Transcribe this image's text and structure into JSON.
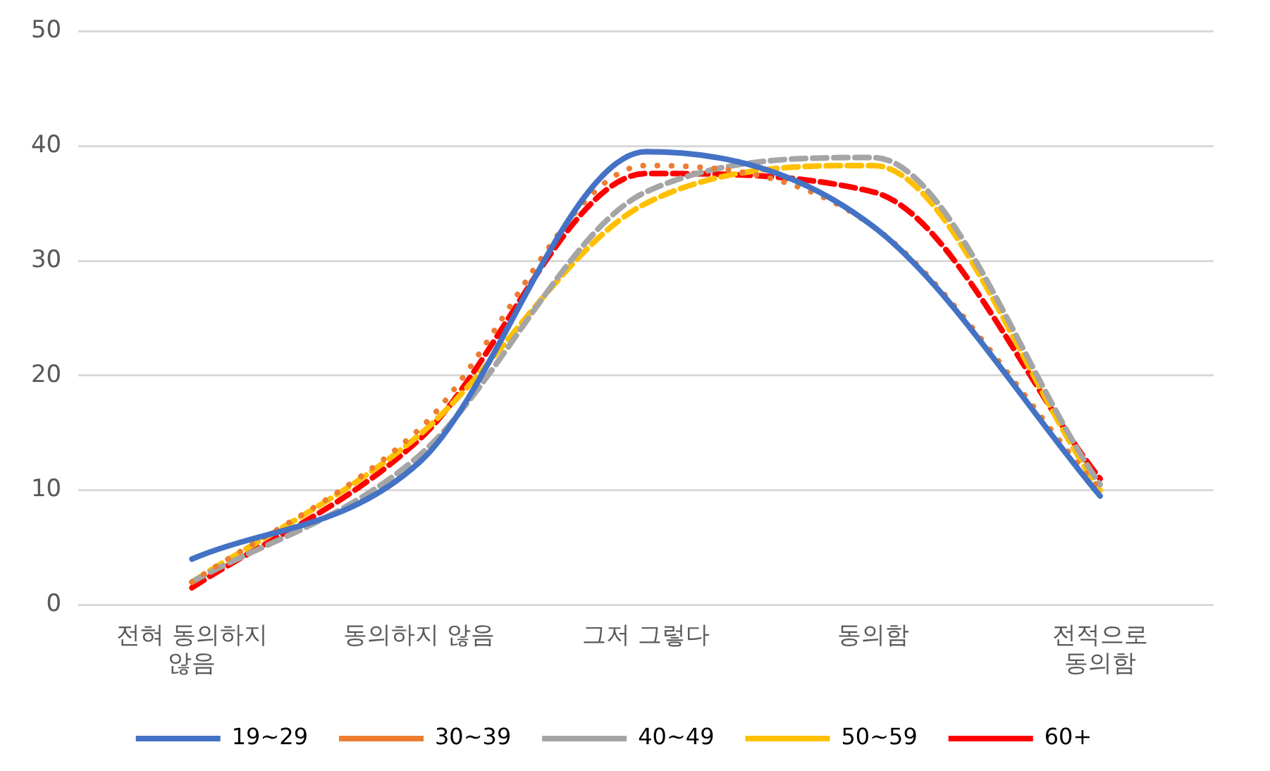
{
  "chart_data": {
    "type": "line",
    "categories": [
      "전혀 동의하지 않음",
      "동의하지 않음",
      "그저 그렇다",
      "동의함",
      "전적으로 동의함"
    ],
    "series": [
      {
        "name": "19~29",
        "color": "#4472c4",
        "line_style": "solid",
        "values": [
          4,
          12.4,
          39.5,
          33,
          9.5
        ]
      },
      {
        "name": "30~39",
        "color": "#ed7d31",
        "line_style": "dotted",
        "values": [
          2,
          15.3,
          38.3,
          33,
          10
        ]
      },
      {
        "name": "40~49",
        "color": "#a5a5a5",
        "line_style": "dashed",
        "values": [
          2,
          13,
          36,
          39,
          10.5
        ]
      },
      {
        "name": "50~59",
        "color": "#ffc000",
        "line_style": "dashed",
        "values": [
          2,
          14.8,
          35,
          38.3,
          10
        ]
      },
      {
        "name": "60+",
        "color": "#ff0000",
        "line_style": "dashed",
        "values": [
          1.5,
          14.4,
          37.6,
          36,
          11
        ]
      }
    ],
    "ylim": [
      0,
      50
    ],
    "yticks": [
      0,
      10,
      20,
      30,
      40,
      50
    ],
    "grid": "y",
    "legend": "bottom",
    "marker": "none"
  }
}
